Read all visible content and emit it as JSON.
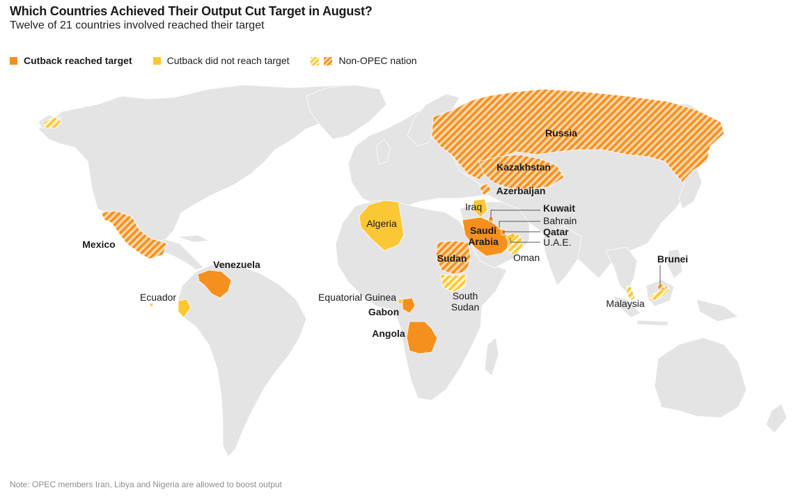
{
  "header": {
    "title": "Which Countries Achieved Their Output Cut Target in August?",
    "subtitle": "Twelve of 21 countries involved reached their target"
  },
  "legend": {
    "reached": "Cutback reached target",
    "not_reached": "Cutback did not reach target",
    "non_opec": "Non-OPEC nation"
  },
  "colors": {
    "reached": "#f5901e",
    "not_reached": "#fcc735",
    "land": "#e4e4e4",
    "leader": "#555555"
  },
  "countries": {
    "russia": {
      "label": "Russia",
      "status": "reached",
      "opec": false
    },
    "kazakhstan": {
      "label": "Kazakhstan",
      "status": "reached",
      "opec": false
    },
    "azerbaijan": {
      "label": "Azerbaijan",
      "status": "reached",
      "opec": false
    },
    "iraq": {
      "label": "Iraq",
      "status": "not_reached",
      "opec": true
    },
    "kuwait": {
      "label": "Kuwait",
      "status": "reached",
      "opec": true
    },
    "bahrain": {
      "label": "Bahrain",
      "status": "not_reached",
      "opec": false
    },
    "qatar": {
      "label": "Qatar",
      "status": "reached",
      "opec": true
    },
    "uae": {
      "label": "U.A.E.",
      "status": "not_reached",
      "opec": true
    },
    "oman": {
      "label": "Oman",
      "status": "not_reached",
      "opec": false
    },
    "saudi_line1": {
      "label": "Saudi",
      "status": "reached",
      "opec": true
    },
    "saudi_line2": {
      "label": "Arabia"
    },
    "algeria": {
      "label": "Algeria",
      "status": "not_reached",
      "opec": true
    },
    "sudan": {
      "label": "Sudan",
      "status": "reached",
      "opec": false
    },
    "south_sudan_line1": {
      "label": "South",
      "status": "not_reached",
      "opec": false
    },
    "south_sudan_line2": {
      "label": "Sudan"
    },
    "equatorial_guinea": {
      "label": "Equatorial Guinea",
      "status": "not_reached",
      "opec": true
    },
    "gabon": {
      "label": "Gabon",
      "status": "reached",
      "opec": true
    },
    "angola": {
      "label": "Angola",
      "status": "reached",
      "opec": true
    },
    "mexico": {
      "label": "Mexico",
      "status": "reached",
      "opec": false
    },
    "venezuela": {
      "label": "Venezuela",
      "status": "reached",
      "opec": true
    },
    "ecuador": {
      "label": "Ecuador",
      "status": "not_reached",
      "opec": true
    },
    "brunei": {
      "label": "Brunei",
      "status": "reached",
      "opec": false
    },
    "malaysia": {
      "label": "Malaysia",
      "status": "not_reached",
      "opec": false
    }
  },
  "footer": {
    "note": "Note: OPEC members Iran, Libya and Nigeria are allowed to boost output"
  }
}
